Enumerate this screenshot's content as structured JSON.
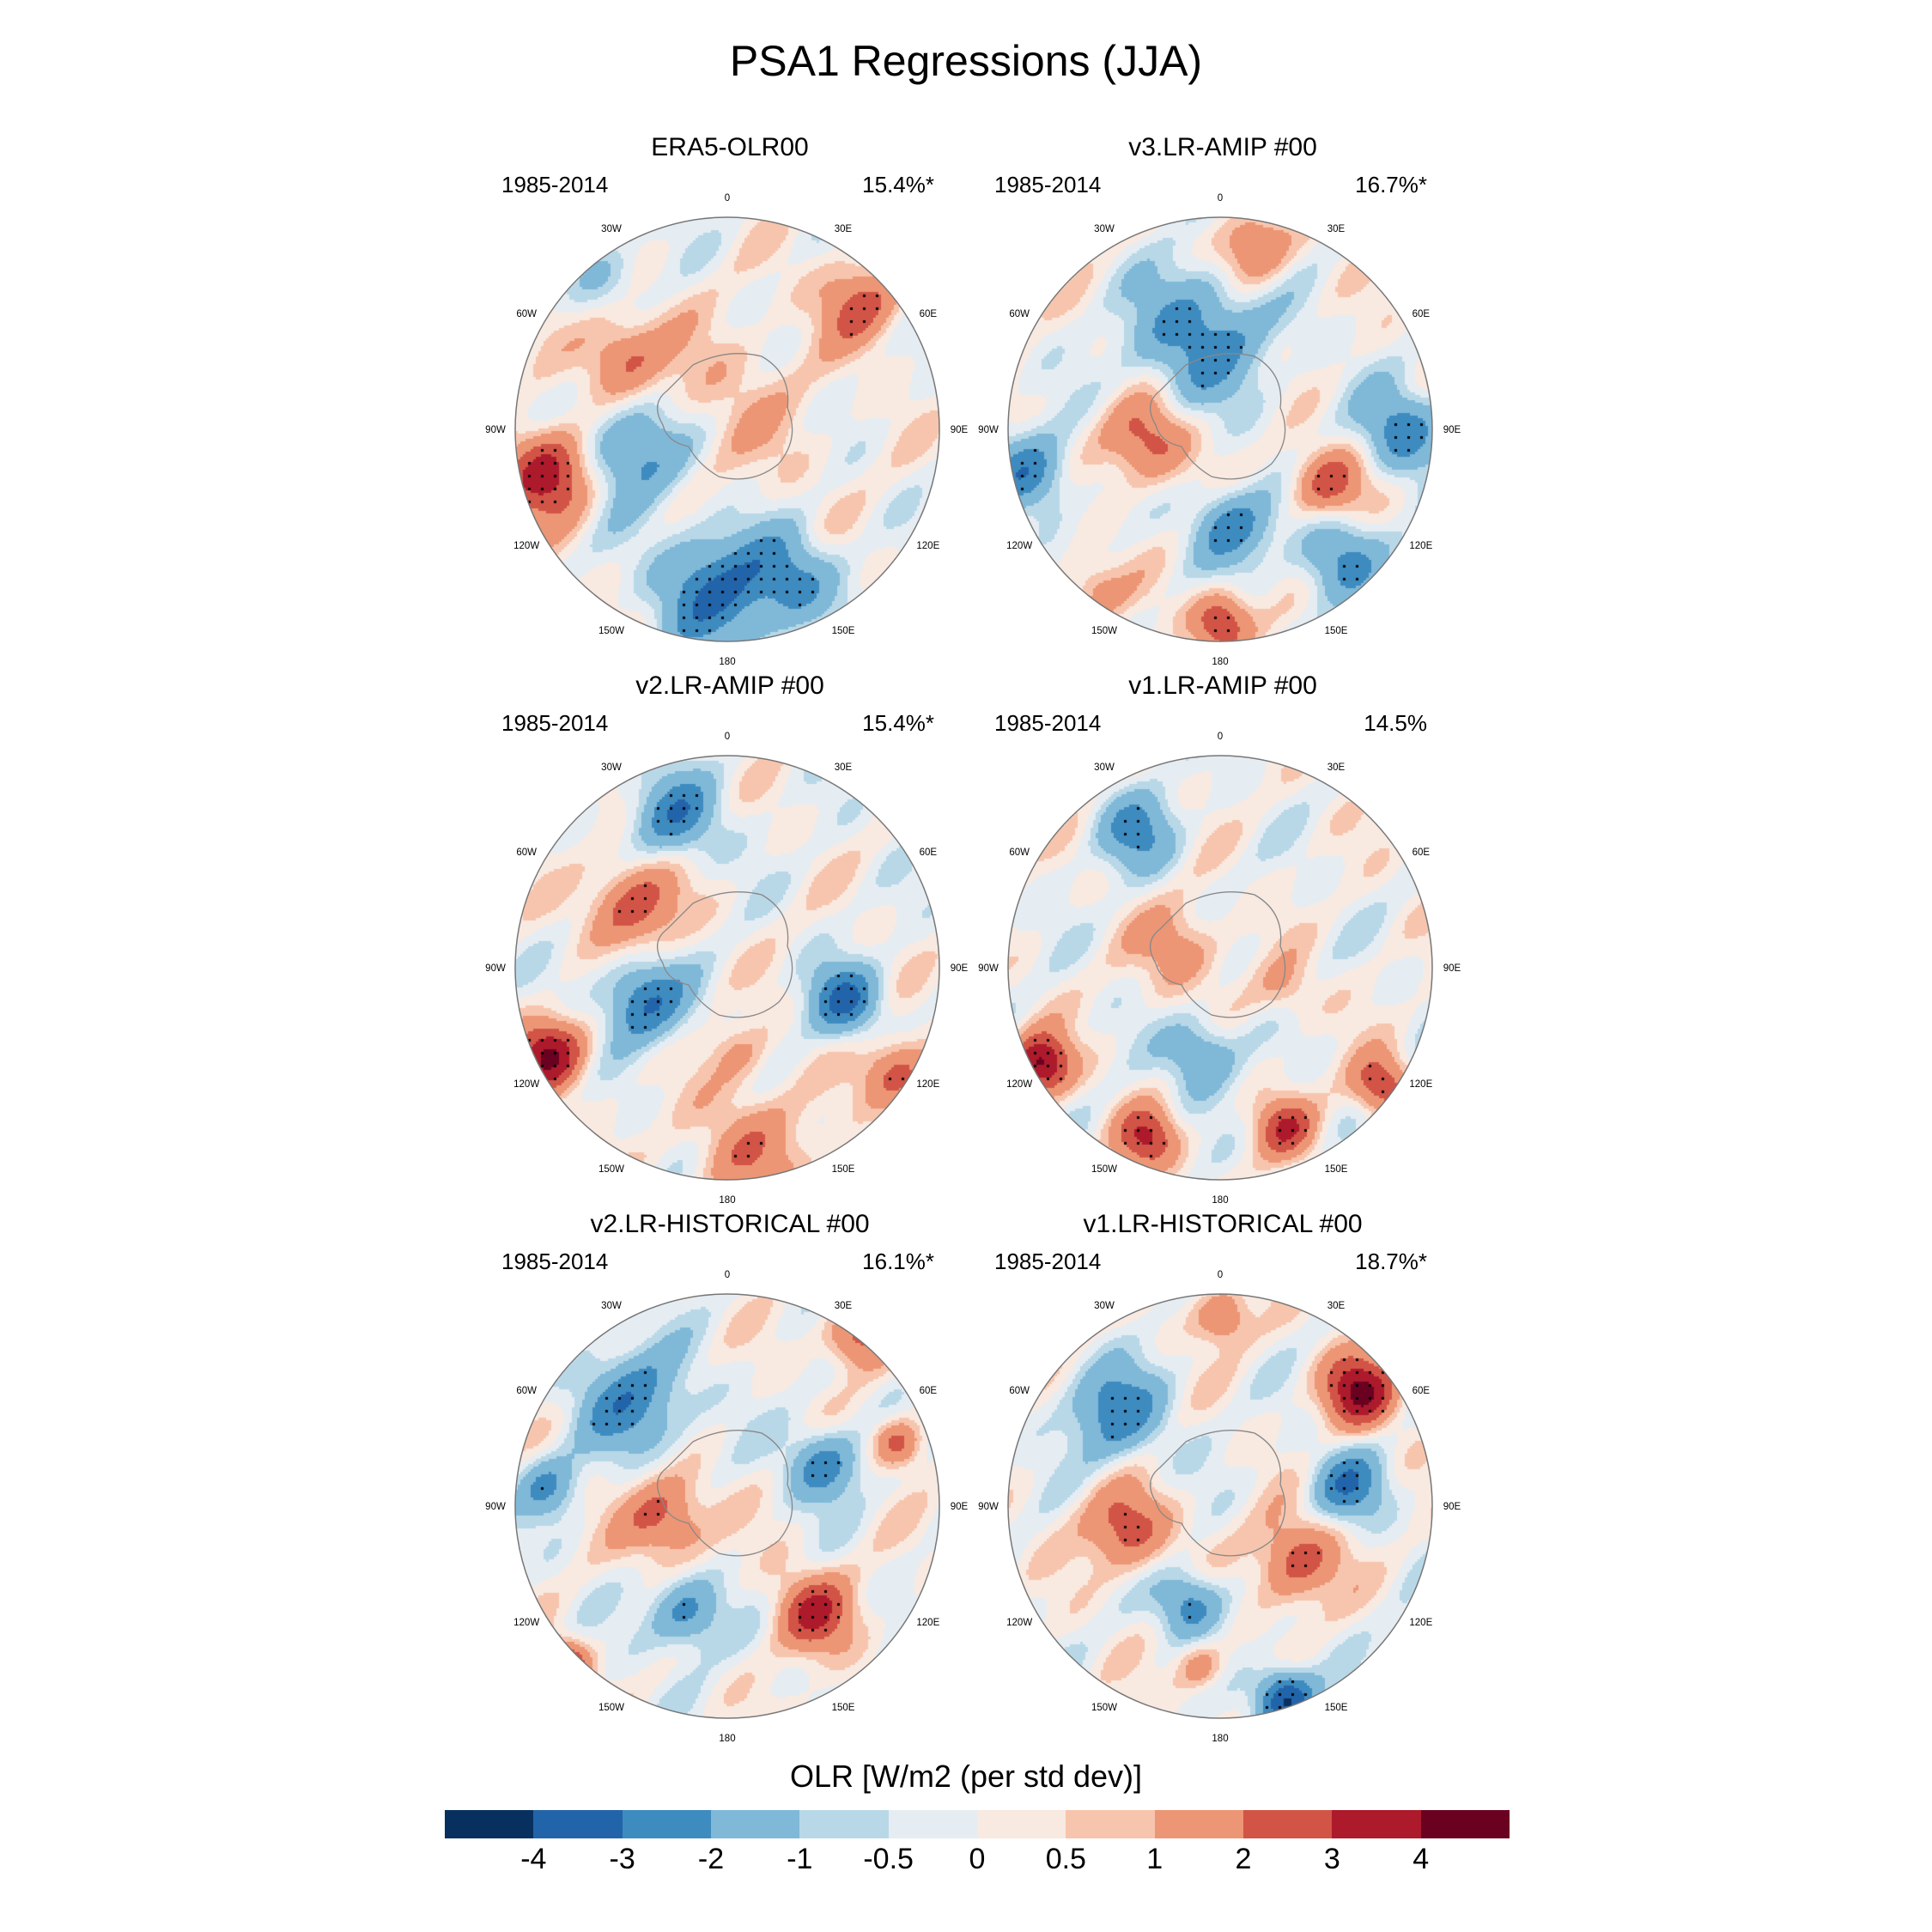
{
  "chart_data": {
    "type": "heatmap",
    "title": "PSA1 Regressions (JJA)",
    "projection": "south-polar-stereographic",
    "lon_labels": [
      "0",
      "30E",
      "60E",
      "90E",
      "120E",
      "150E",
      "180",
      "150W",
      "120W",
      "90W",
      "60W",
      "30W"
    ],
    "panels": [
      {
        "title": "ERA5-OLR00",
        "years": "1985-2014",
        "pct": "15.4%*"
      },
      {
        "title": "v3.LR-AMIP  #00",
        "years": "1985-2014",
        "pct": "16.7%*"
      },
      {
        "title": "v2.LR-AMIP  #00",
        "years": "1985-2014",
        "pct": "15.4%*"
      },
      {
        "title": "v1.LR-AMIP  #00",
        "years": "1985-2014",
        "pct": "14.5%"
      },
      {
        "title": "v2.LR-HISTORICAL  #00",
        "years": "1985-2014",
        "pct": "16.1%*"
      },
      {
        "title": "v1.LR-HISTORICAL  #00",
        "years": "1985-2014",
        "pct": "18.7%*"
      }
    ],
    "colorbar": {
      "title": "OLR [W/m2 (per std dev)]",
      "levels": [
        "-4",
        "-3",
        "-2",
        "-1",
        "-0.5",
        "0",
        "0.5",
        "1",
        "2",
        "3",
        "4"
      ],
      "level_values": [
        -4,
        -3,
        -2,
        -1,
        -0.5,
        0,
        0.5,
        1,
        2,
        3,
        4
      ],
      "colors": [
        "#08305f",
        "#2264aa",
        "#3e8bc0",
        "#80b8d8",
        "#b8d8e8",
        "#e5edf3",
        "#f8e9e1",
        "#f7c5ad",
        "#ec9675",
        "#d25446",
        "#ad1a2c",
        "#6a0120"
      ]
    }
  }
}
